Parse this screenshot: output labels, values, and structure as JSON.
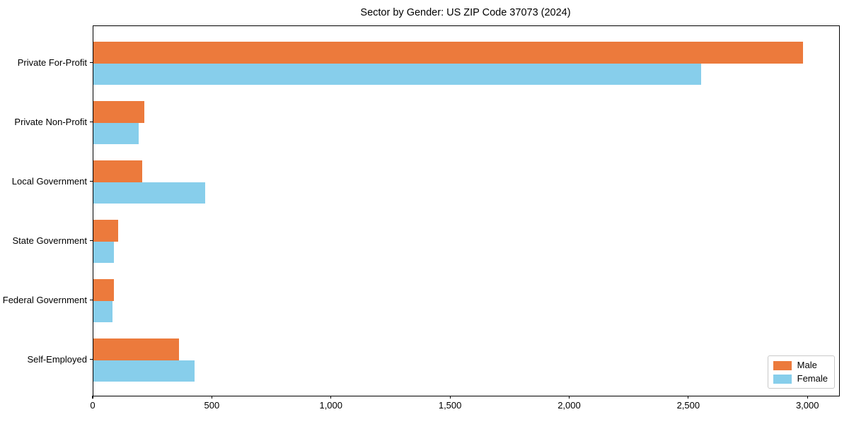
{
  "title": "Sector by Gender: US ZIP Code 37073 (2024)",
  "colors": {
    "male": "#ec7a3c",
    "female": "#87ceeb",
    "axis": "#000000",
    "background": "#ffffff",
    "legend_border": "#c9c9c9"
  },
  "legend": {
    "position": "lower right",
    "items": [
      {
        "label": "Male",
        "color": "#ec7a3c"
      },
      {
        "label": "Female",
        "color": "#87ceeb"
      }
    ]
  },
  "chart_data": {
    "type": "bar",
    "orientation": "horizontal",
    "title": "Sector by Gender: US ZIP Code 37073 (2024)",
    "categories": [
      "Private For-Profit",
      "Private Non-Profit",
      "Local Government",
      "State Government",
      "Federal Government",
      "Self-Employed"
    ],
    "series": [
      {
        "name": "Male",
        "color": "#ec7a3c",
        "values": [
          2980,
          215,
          205,
          105,
          85,
          360
        ]
      },
      {
        "name": "Female",
        "color": "#87ceeb",
        "values": [
          2550,
          190,
          470,
          85,
          80,
          425
        ]
      }
    ],
    "xlabel": "",
    "ylabel": "",
    "xlim": [
      0,
      3130
    ],
    "x_ticks": [
      0,
      500,
      1000,
      1500,
      2000,
      2500,
      3000
    ],
    "x_tick_labels": [
      "0",
      "500",
      "1,000",
      "1,500",
      "2,000",
      "2,500",
      "3,000"
    ],
    "grid": false,
    "legend_position": "lower right"
  }
}
